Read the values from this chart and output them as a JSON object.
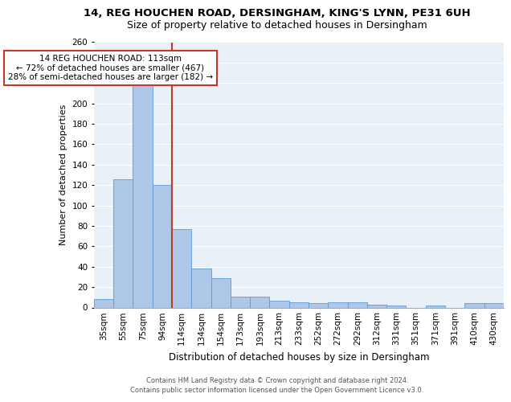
{
  "title1": "14, REG HOUCHEN ROAD, DERSINGHAM, KING'S LYNN, PE31 6UH",
  "title2": "Size of property relative to detached houses in Dersingham",
  "xlabel": "Distribution of detached houses by size in Dersingham",
  "ylabel": "Number of detached properties",
  "footer1": "Contains HM Land Registry data © Crown copyright and database right 2024.",
  "footer2": "Contains public sector information licensed under the Open Government Licence v3.0.",
  "categories": [
    "35sqm",
    "55sqm",
    "75sqm",
    "94sqm",
    "114sqm",
    "134sqm",
    "154sqm",
    "173sqm",
    "193sqm",
    "213sqm",
    "233sqm",
    "252sqm",
    "272sqm",
    "292sqm",
    "312sqm",
    "331sqm",
    "351sqm",
    "371sqm",
    "391sqm",
    "410sqm",
    "430sqm"
  ],
  "values": [
    8,
    126,
    218,
    120,
    77,
    38,
    29,
    11,
    11,
    7,
    5,
    4,
    5,
    5,
    3,
    2,
    0,
    2,
    0,
    4,
    4
  ],
  "bar_color": "#aec6e8",
  "bar_edge_color": "#5b9bd5",
  "vline_index": 4,
  "annotation_text_line1": "14 REG HOUCHEN ROAD: 113sqm",
  "annotation_text_line2": "← 72% of detached houses are smaller (467)",
  "annotation_text_line3": "28% of semi-detached houses are larger (182) →",
  "vline_color": "#c0392b",
  "box_edge_color": "#c0392b",
  "ylim": [
    0,
    260
  ],
  "yticks": [
    0,
    20,
    40,
    60,
    80,
    100,
    120,
    140,
    160,
    180,
    200,
    220,
    240,
    260
  ],
  "bg_color": "#e8f0f8",
  "grid_color": "#ffffff",
  "title1_fontsize": 9.5,
  "title2_fontsize": 9,
  "xlabel_fontsize": 8.5,
  "ylabel_fontsize": 8,
  "tick_fontsize": 7.5,
  "annotation_fontsize": 7.5,
  "footer_fontsize": 6
}
